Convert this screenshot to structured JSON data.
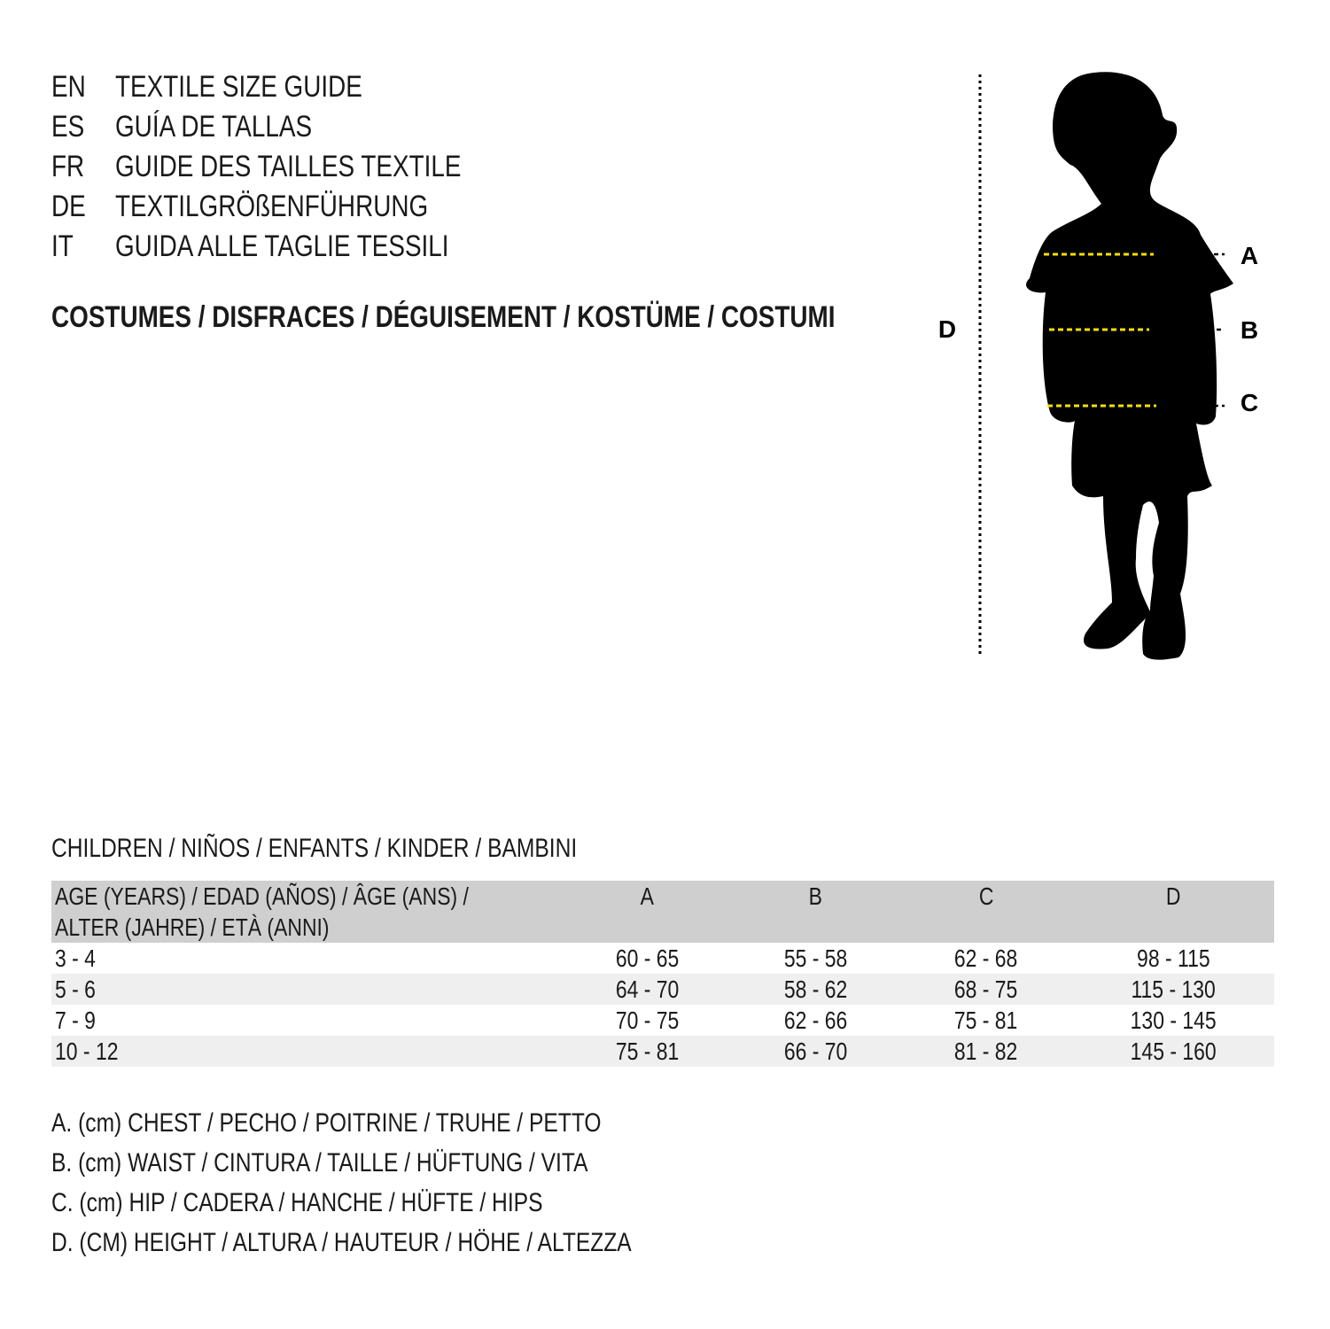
{
  "titles": [
    {
      "code": "EN",
      "text": "TEXTILE SIZE GUIDE"
    },
    {
      "code": "ES",
      "text": "GUÍA DE TALLAS"
    },
    {
      "code": "FR",
      "text": "GUIDE DES TAILLES TEXTILE"
    },
    {
      "code": "DE",
      "text": "TEXTILGRÖßENFÜHRUNG"
    },
    {
      "code": "IT",
      "text": "GUIDA ALLE TAGLIE TESSILI"
    }
  ],
  "category": "COSTUMES / DISFRACES / DÉGUISEMENT / KOSTÜME / COSTUMI",
  "figure": {
    "labels": {
      "a": "A",
      "b": "B",
      "c": "C",
      "d": "D"
    },
    "measure_line_color": "#f5e000",
    "silhouette_color": "#000000"
  },
  "table": {
    "group_title": "CHILDREN / NIÑOS / ENFANTS / KINDER / BAMBINI",
    "header": {
      "age_line1": "AGE (YEARS) / EDAD (AÑOS) / ÂGE (ANS) /",
      "age_line2": "ALTER (JAHRE) / ETÀ (ANNI)",
      "cols": [
        "A",
        "B",
        "C",
        "D"
      ]
    },
    "rows": [
      {
        "age": "3 - 4",
        "a": "60 - 65",
        "b": "55 - 58",
        "c": "62 - 68",
        "d": "98 - 115"
      },
      {
        "age": "5 - 6",
        "a": "64 - 70",
        "b": "58 - 62",
        "c": "68 - 75",
        "d": "115 - 130"
      },
      {
        "age": "7 - 9",
        "a": "70 - 75",
        "b": "62 - 66",
        "c": "75 - 81",
        "d": "130 - 145"
      },
      {
        "age": "10 - 12",
        "a": "75 - 81",
        "b": "66 - 70",
        "c": "81 - 82",
        "d": "145 - 160"
      }
    ]
  },
  "legend": [
    "A. (cm) CHEST / PECHO / POITRINE / TRUHE / PETTO",
    "B. (cm) WAIST / CINTURA / TAILLE / HÜFTUNG / VITA",
    "C. (cm) HIP / CADERA / HANCHE / HÜFTE / HIPS",
    "D. (CM) HEIGHT / ALTURA / HAUTEUR / HÖHE / ALTEZZA"
  ]
}
